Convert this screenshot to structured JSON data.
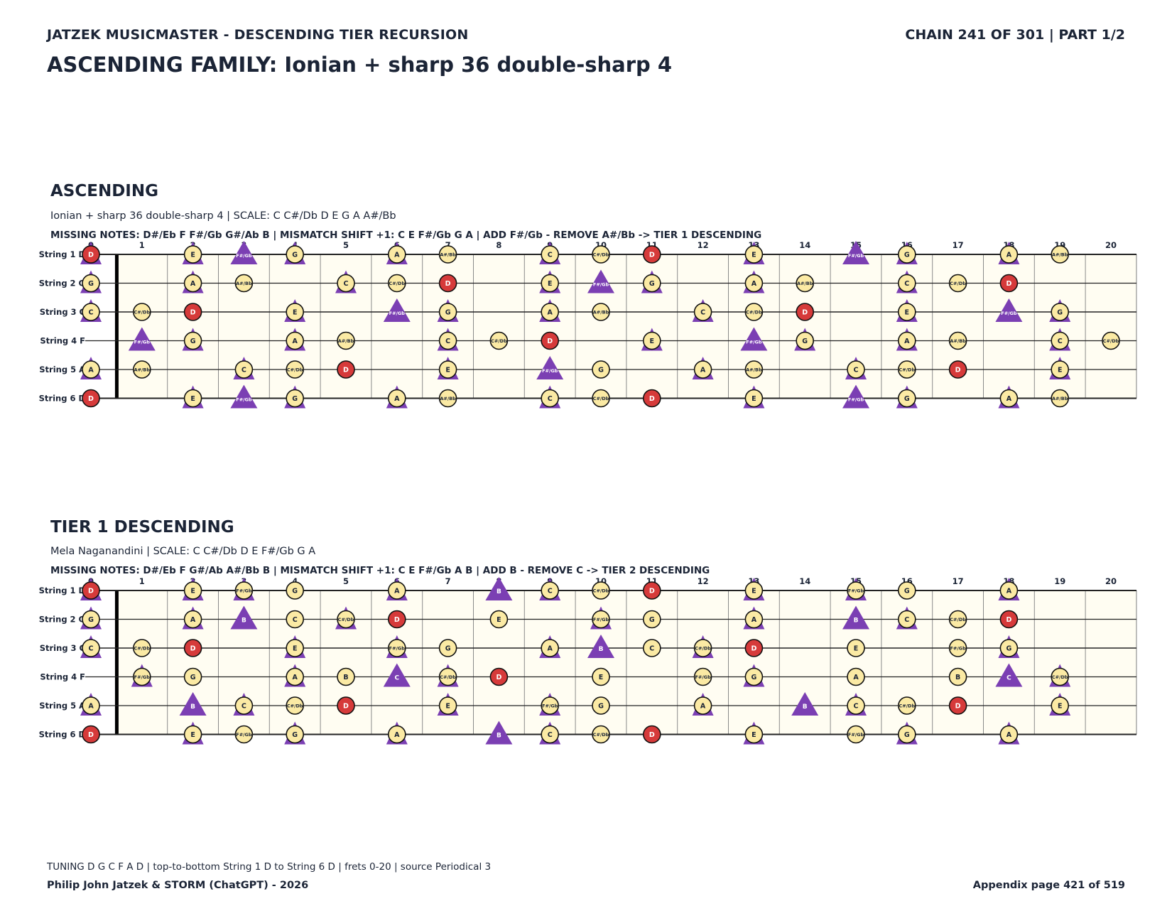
{
  "header": {
    "left": "JATZEK MUSICMASTER - DESCENDING TIER RECURSION",
    "right": "CHAIN 241 OF 301  |  PART 1/2",
    "title": "ASCENDING FAMILY: Ionian + sharp 36 double-sharp 4"
  },
  "colors": {
    "tone_fill": "#fbeaa4",
    "root_fill": "#d63a3a",
    "marker": "#7b3fb3",
    "board_bg": "#fffdf2"
  },
  "legend_icons": [
    "tone-circle",
    "root-circle",
    "added-note-triangle"
  ],
  "fret_numbers": [
    "0",
    "1",
    "2",
    "3",
    "4",
    "5",
    "6",
    "7",
    "8",
    "9",
    "10",
    "11",
    "12",
    "13",
    "14",
    "15",
    "16",
    "17",
    "18",
    "19",
    "20"
  ],
  "sections": [
    {
      "title": "ASCENDING",
      "scale_line": "Ionian + sharp 36 double-sharp 4  |  SCALE: C C#/Db D E G A A#/Bb",
      "missing_line": "MISSING NOTES: D#/Eb F F#/Gb G#/Ab B  |  MISMATCH SHIFT +1: C E F#/Gb G A  |  ADD F#/Gb - REMOVE A#/Bb -> TIER 1 DESCENDING",
      "strings": [
        {
          "label": "String 1 D",
          "cells": [
            "D",
            "",
            "E",
            "F#/Gb",
            "G",
            "",
            "A",
            "A#/Bb",
            "",
            "C",
            "C#/Db",
            "D",
            "",
            "E",
            "",
            "F#/Gb",
            "G",
            "",
            "A",
            "A#/Bb"
          ],
          "tri": [
            0,
            2,
            4,
            6,
            9,
            13,
            16,
            18
          ],
          "bigtri": [
            3,
            15
          ]
        },
        {
          "label": "String 2 G",
          "cells": [
            "G",
            "",
            "A",
            "A#/Bb",
            "",
            "C",
            "C#/Db",
            "D",
            "",
            "E",
            "F#/Gb",
            "G",
            "",
            "A",
            "A#/Bb",
            "",
            "C",
            "C#/Db",
            "D",
            ""
          ],
          "tri": [
            0,
            2,
            5,
            9,
            11,
            13,
            16
          ],
          "bigtri": [
            10
          ]
        },
        {
          "label": "String 3 C",
          "cells": [
            "C",
            "C#/Db",
            "D",
            "",
            "E",
            "",
            "F#/Gb",
            "G",
            "",
            "A",
            "A#/Bb",
            "",
            "C",
            "C#/Db",
            "D",
            "",
            "E",
            "",
            "F#/Gb",
            "G"
          ],
          "tri": [
            0,
            4,
            7,
            9,
            12,
            16,
            19
          ],
          "bigtri": [
            6,
            18
          ]
        },
        {
          "label": "String 4 F",
          "cells": [
            "",
            "F#/Gb",
            "G",
            "",
            "A",
            "A#/Bb",
            "",
            "C",
            "C#/Db",
            "D",
            "",
            "E",
            "",
            "F#/Gb",
            "G",
            "",
            "A",
            "A#/Bb",
            "",
            "C",
            "C#/Db"
          ],
          "tri": [
            2,
            4,
            7,
            11,
            14,
            16,
            19
          ],
          "bigtri": [
            1,
            13
          ]
        },
        {
          "label": "String 5 A",
          "cells": [
            "A",
            "A#/Bb",
            "",
            "C",
            "C#/Db",
            "D",
            "",
            "E",
            "",
            "F#/Gb",
            "G",
            "",
            "A",
            "A#/Bb",
            "",
            "C",
            "C#/Db",
            "D",
            "",
            "E"
          ],
          "tri": [
            0,
            3,
            7,
            12,
            15,
            19
          ],
          "bigtri": [
            9
          ]
        },
        {
          "label": "String 6 D",
          "cells": [
            "D",
            "",
            "E",
            "F#/Gb",
            "G",
            "",
            "A",
            "A#/Bb",
            "",
            "C",
            "C#/Db",
            "D",
            "",
            "E",
            "",
            "F#/Gb",
            "G",
            "",
            "A",
            "A#/Bb"
          ],
          "tri": [
            2,
            4,
            6,
            9,
            13,
            16,
            18
          ],
          "bigtri": [
            3,
            15
          ]
        }
      ]
    },
    {
      "title": "TIER 1 DESCENDING",
      "scale_line": "Mela Naganandini  |  SCALE: C C#/Db D E F#/Gb G A",
      "missing_line": "MISSING NOTES: D#/Eb F G#/Ab A#/Bb B  |  MISMATCH SHIFT +1: C E F#/Gb A B  |  ADD B - REMOVE C -> TIER 2 DESCENDING",
      "strings": [
        {
          "label": "String 1 D",
          "cells": [
            "D",
            "",
            "E",
            "F#/Gb",
            "G",
            "",
            "A",
            "",
            "B",
            "C",
            "C#/Db",
            "D",
            "",
            "E",
            "",
            "F#/Gb",
            "G",
            "",
            "A",
            ""
          ],
          "tri": [
            0,
            2,
            3,
            6,
            9,
            13,
            15,
            18
          ],
          "bigtri": [
            8
          ]
        },
        {
          "label": "String 2 G",
          "cells": [
            "G",
            "",
            "A",
            "B",
            "C",
            "C#/Db",
            "D",
            "",
            "E",
            "",
            "F#/Gb",
            "G",
            "",
            "A",
            "",
            "B",
            "C",
            "C#/Db",
            "D",
            ""
          ],
          "tri": [
            0,
            2,
            5,
            9,
            10,
            13,
            16
          ],
          "bigtri": [
            3,
            15
          ]
        },
        {
          "label": "String 3 C",
          "cells": [
            "C",
            "C#/Db",
            "D",
            "",
            "E",
            "",
            "F#/Gb",
            "G",
            "",
            "A",
            "B",
            "C",
            "C#/Db",
            "D",
            "",
            "E",
            "",
            "F#/Gb",
            "G",
            ""
          ],
          "tri": [
            0,
            4,
            6,
            9,
            12,
            16,
            18
          ],
          "bigtri": [
            10
          ]
        },
        {
          "label": "String 4 F",
          "cells": [
            "",
            "F#/Gb",
            "G",
            "",
            "A",
            "B",
            "C",
            "C#/Db",
            "D",
            "",
            "E",
            "",
            "F#/Gb",
            "G",
            "",
            "A",
            "",
            "B",
            "C",
            "C#/Db"
          ],
          "tri": [
            1,
            4,
            7,
            11,
            13,
            16,
            19
          ],
          "bigtri": [
            6,
            18
          ]
        },
        {
          "label": "String 5 A",
          "cells": [
            "A",
            "",
            "B",
            "C",
            "C#/Db",
            "D",
            "",
            "E",
            "",
            "F#/Gb",
            "G",
            "",
            "A",
            "",
            "B",
            "C",
            "C#/Db",
            "D",
            "",
            "E"
          ],
          "tri": [
            0,
            3,
            7,
            9,
            12,
            15,
            19
          ],
          "bigtri": [
            2,
            14
          ]
        },
        {
          "label": "String 6 D",
          "cells": [
            "D",
            "",
            "E",
            "F#/Gb",
            "G",
            "",
            "A",
            "",
            "B",
            "C",
            "C#/Db",
            "D",
            "",
            "E",
            "",
            "F#/Gb",
            "G",
            "",
            "A",
            ""
          ],
          "tri": [
            2,
            4,
            6,
            9,
            13,
            16,
            18
          ],
          "bigtri": [
            8
          ]
        }
      ]
    }
  ],
  "footer": {
    "tuning": "TUNING D G C F A D | top-to-bottom String 1 D to String 6 D | frets 0-20 | source Periodical 3",
    "credit": "Philip John Jatzek & STORM (ChatGPT) - 2026",
    "page": "Appendix page 421 of 519"
  }
}
